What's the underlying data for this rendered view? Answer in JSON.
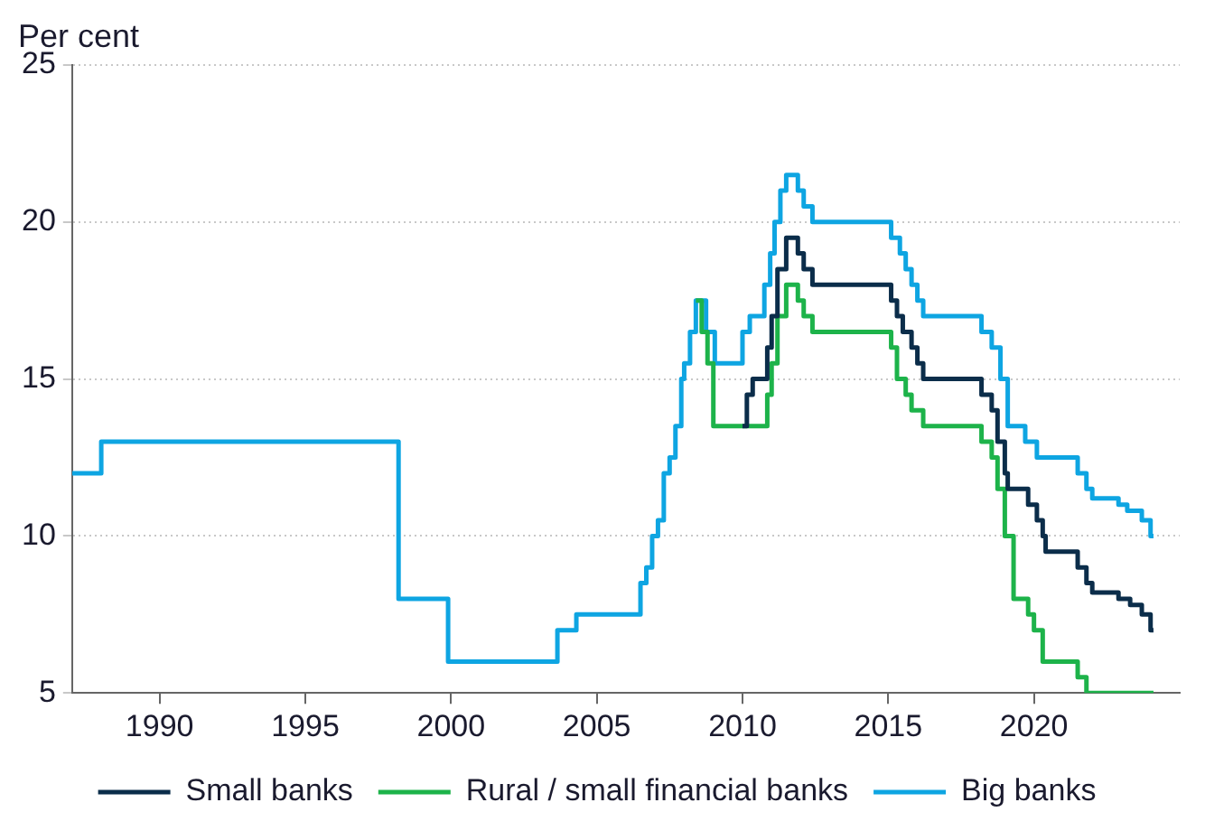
{
  "chart_data": {
    "type": "step",
    "ylabel": "Per cent",
    "xlim": [
      1987,
      2025
    ],
    "xticks": [
      1990,
      1995,
      2000,
      2005,
      2010,
      2015,
      2020
    ],
    "ylim": [
      5,
      25
    ],
    "yticks": [
      5,
      10,
      15,
      20,
      25
    ],
    "grid": "y",
    "legend": "bottom",
    "line_style": "solid",
    "marker": "none",
    "series": [
      {
        "name": "Small banks",
        "color": "#0b2d4a",
        "x": [
          2010.0,
          2010.15,
          2010.35,
          2010.85,
          2011.0,
          2011.2,
          2011.5,
          2011.9,
          2012.1,
          2012.4,
          2015.1,
          2015.3,
          2015.5,
          2015.8,
          2016.0,
          2016.2,
          2018.2,
          2018.55,
          2018.75,
          2019.0,
          2019.1,
          2019.8,
          2020.1,
          2020.3,
          2020.4,
          2021.5,
          2021.8,
          2022.0,
          2022.9,
          2023.3,
          2023.7,
          2024.0,
          2024.1
        ],
        "values": [
          13.5,
          14.5,
          15,
          16,
          17,
          18.5,
          19.5,
          19,
          18.5,
          18,
          17.5,
          17,
          16.5,
          16,
          15.5,
          15,
          14.5,
          14,
          13,
          12,
          11.5,
          11,
          10.5,
          10,
          9.5,
          9,
          8.5,
          8.2,
          8,
          7.8,
          7.5,
          7,
          7
        ]
      },
      {
        "name": "Rural / small financial banks",
        "color": "#1db34a",
        "x": [
          2008.4,
          2008.6,
          2008.8,
          2009.0,
          2010.85,
          2011.0,
          2011.2,
          2011.5,
          2011.9,
          2012.1,
          2012.4,
          2015.1,
          2015.3,
          2015.6,
          2015.8,
          2016.2,
          2018.2,
          2018.55,
          2018.75,
          2019.0,
          2019.3,
          2019.8,
          2020.0,
          2020.3,
          2021.5,
          2021.8,
          2024.1
        ],
        "values": [
          17.5,
          16.5,
          15.5,
          13.5,
          14.5,
          15.5,
          17,
          18,
          17.5,
          17,
          16.5,
          16,
          15,
          14.5,
          14,
          13.5,
          13,
          12.5,
          11.5,
          10,
          8,
          7.5,
          7,
          6,
          5.5,
          5,
          5
        ]
      },
      {
        "name": "Big banks",
        "color": "#0ea5e2",
        "x": [
          1987,
          1988.0,
          1998.2,
          1999.9,
          2003.65,
          2004.3,
          2006.5,
          2006.7,
          2006.9,
          2007.1,
          2007.3,
          2007.5,
          2007.7,
          2007.9,
          2008.0,
          2008.2,
          2008.4,
          2008.75,
          2009.05,
          2010.0,
          2010.25,
          2010.75,
          2010.95,
          2011.1,
          2011.3,
          2011.5,
          2011.9,
          2012.1,
          2012.4,
          2015.1,
          2015.4,
          2015.6,
          2015.8,
          2016.0,
          2016.2,
          2018.2,
          2018.55,
          2018.85,
          2019.1,
          2019.7,
          2020.1,
          2021.5,
          2021.8,
          2022.0,
          2022.9,
          2023.2,
          2023.7,
          2024.0,
          2024.1
        ],
        "values": [
          12,
          13,
          8,
          6,
          7,
          7.5,
          8.5,
          9,
          10,
          10.5,
          12,
          12.5,
          13.5,
          15,
          15.5,
          16.5,
          17.5,
          16.5,
          15.5,
          16.5,
          17,
          18,
          19,
          20,
          21,
          21.5,
          21,
          20.5,
          20,
          19.5,
          19,
          18.5,
          18,
          17.5,
          17,
          16.5,
          16,
          15,
          13.5,
          13,
          12.5,
          12,
          11.5,
          11.2,
          11,
          10.8,
          10.5,
          10,
          10
        ]
      }
    ]
  }
}
